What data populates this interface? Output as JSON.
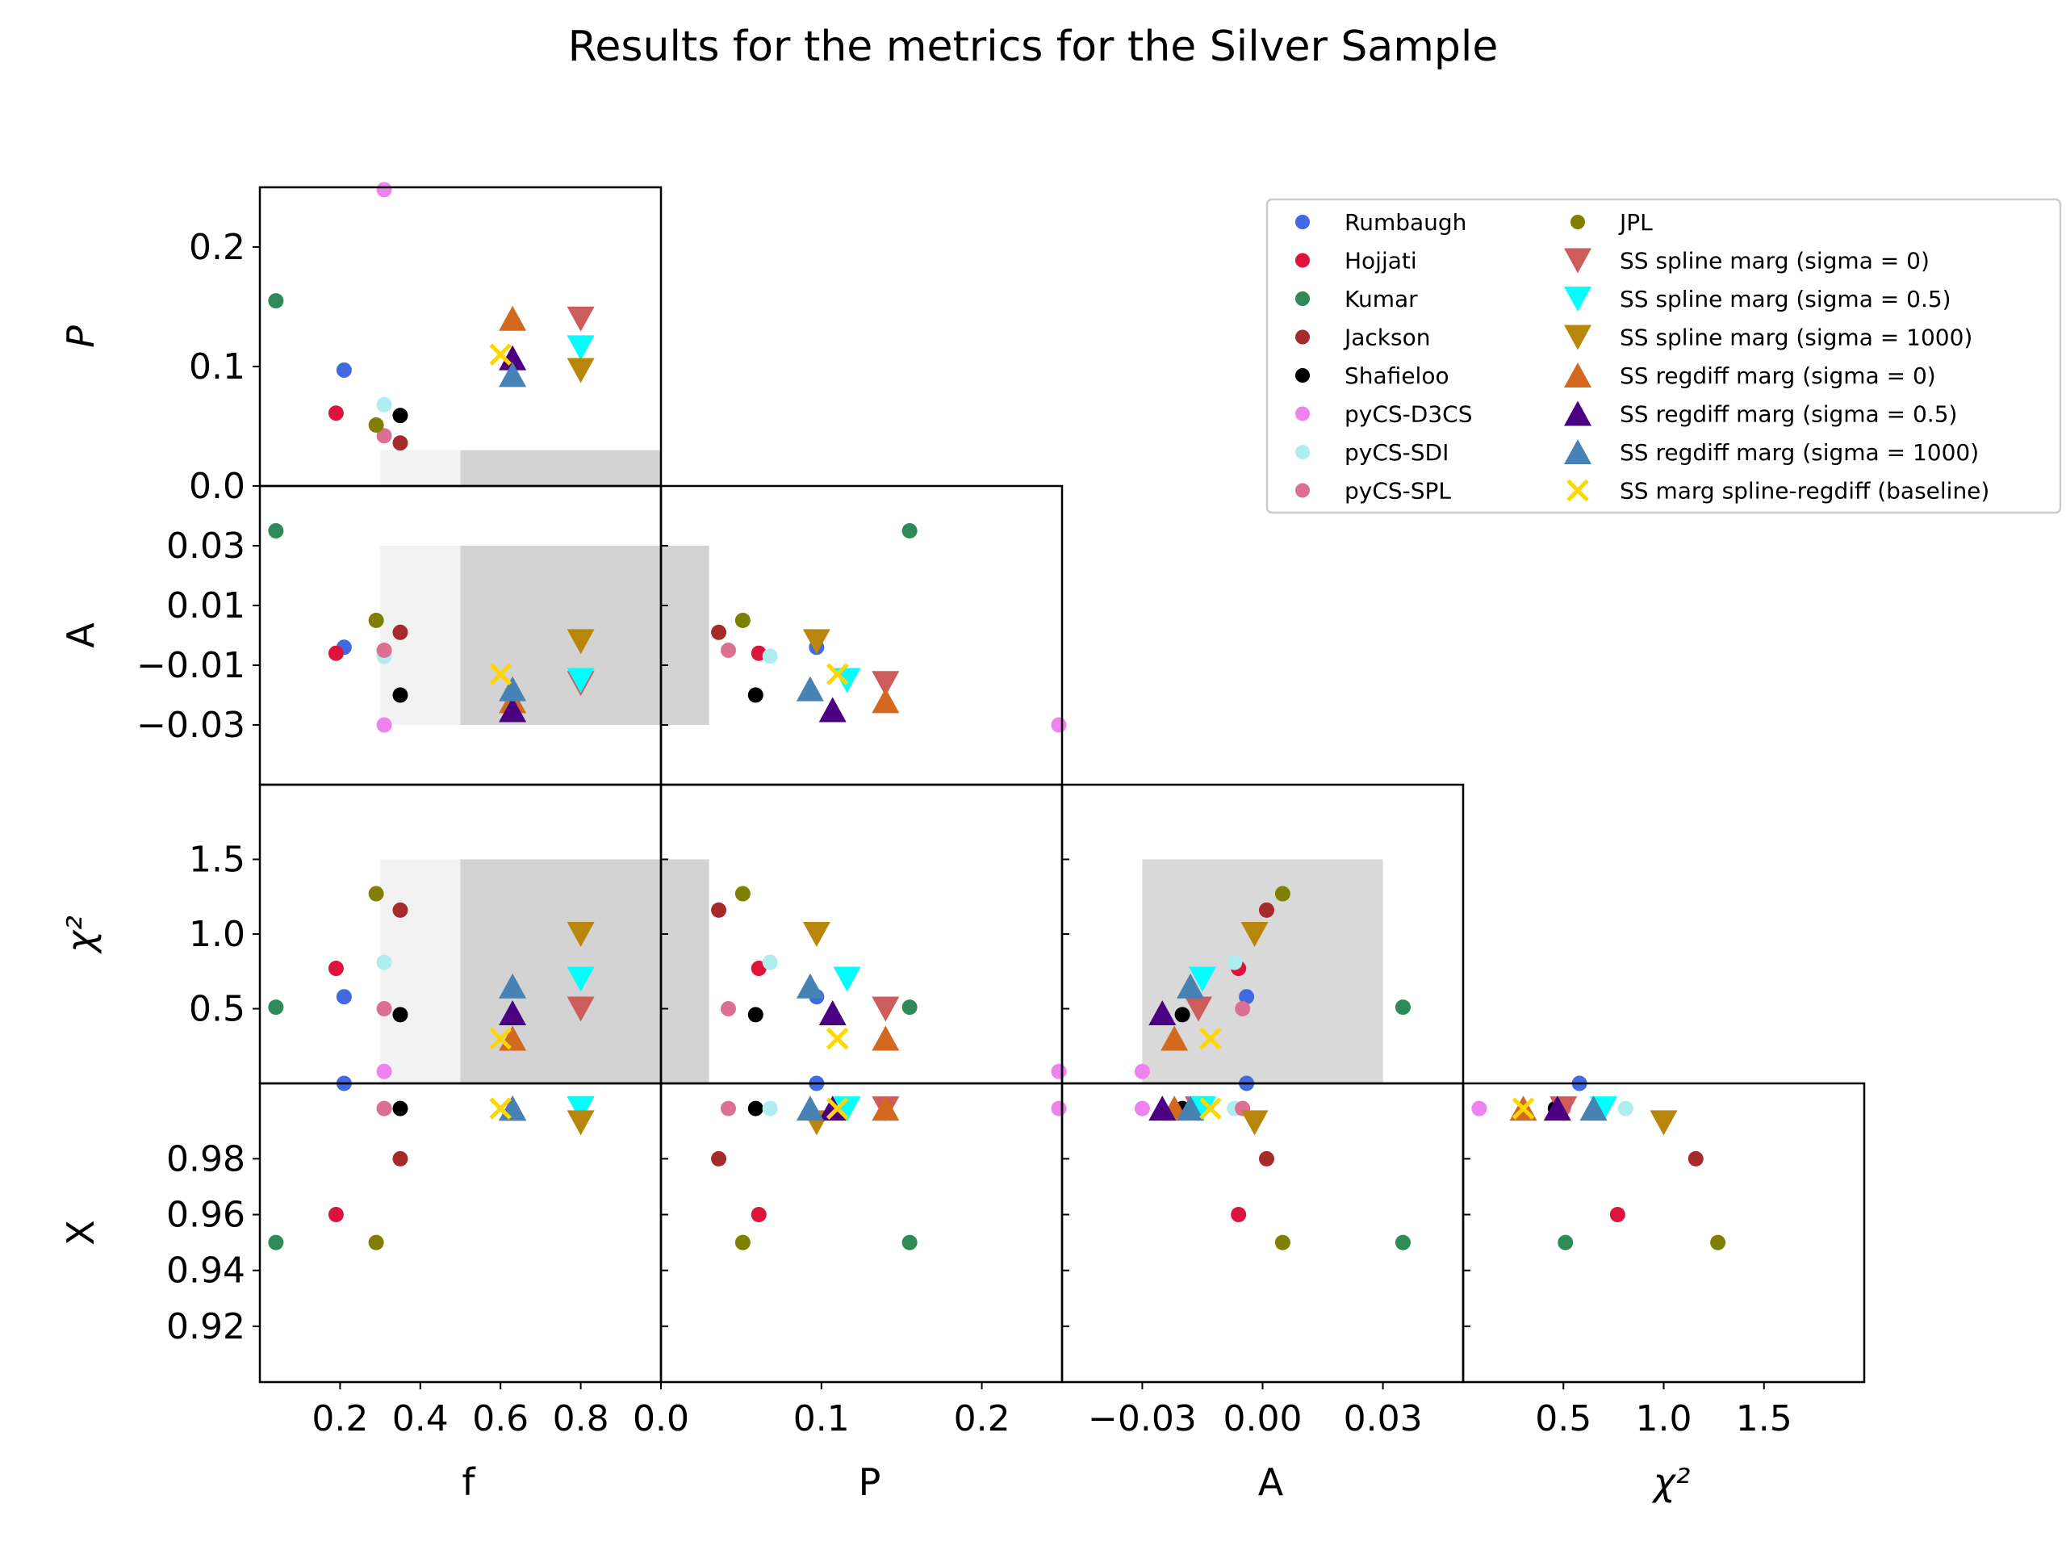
{
  "title": "Results for the metrics for the Silver Sample",
  "colors": {
    "good_region_light": "#f2f2f2",
    "good_region_dark": "#d3d3d3",
    "chi2_A_region": "#d9d9d9"
  },
  "chart_data": {
    "type": "scatter",
    "layout": "corner plot (lower triangle)",
    "variables": [
      "f",
      "P",
      "A",
      "chi2"
    ],
    "axis_labels": {
      "f": "f",
      "P": "P",
      "A": "A",
      "chi2": "χ²",
      "X": "X"
    },
    "ticks": {
      "f": [
        "0.2",
        "0.4",
        "0.6",
        "0.8",
        "0.0"
      ],
      "P": [
        "0.0",
        "0.1",
        "0.2"
      ],
      "A": [
        "−0.03",
        "0.00",
        "0.03"
      ],
      "chi2": [
        "0.5",
        "1.0",
        "1.5"
      ],
      "P_y": [
        "0.2",
        "0.1",
        "0.0"
      ],
      "A_y": [
        "0.03",
        "0.01",
        "−0.01",
        "−0.03"
      ],
      "chi2_y": [
        "1.5",
        "1.0",
        "0.5"
      ],
      "X_y": [
        "0.98",
        "0.96",
        "0.94",
        "0.92"
      ]
    },
    "ranges": {
      "f": [
        0.0,
        1.0
      ],
      "P": [
        0.0,
        0.25
      ],
      "A": [
        -0.05,
        0.05
      ],
      "chi2": [
        0.0,
        2.0
      ],
      "X": [
        0.9,
        1.007
      ]
    },
    "shaded_regions": {
      "f": {
        "light": [
          0.3,
          1.0
        ],
        "dark": [
          0.5,
          1.0
        ]
      },
      "P": [
        0.0,
        0.03
      ],
      "A": [
        -0.03,
        0.03
      ],
      "chi2": [
        0.0,
        1.5
      ]
    },
    "legend_position": "top-right",
    "series": [
      {
        "name": "Rumbaugh",
        "color": "#4169e1",
        "marker": "circle",
        "f": 0.21,
        "P": 0.097,
        "A": -0.004,
        "chi2": 0.58,
        "X": 1.02
      },
      {
        "name": "Hojjati",
        "color": "#dc143c",
        "marker": "circle",
        "f": 0.19,
        "P": 0.061,
        "A": -0.006,
        "chi2": 0.77,
        "X": 0.96
      },
      {
        "name": "Kumar",
        "color": "#2e8b57",
        "marker": "circle",
        "f": 0.04,
        "P": 0.155,
        "A": 0.035,
        "chi2": 0.51,
        "X": 0.95
      },
      {
        "name": "Jackson",
        "color": "#a52a2a",
        "marker": "circle",
        "f": 0.35,
        "P": 0.036,
        "A": 0.001,
        "chi2": 1.16,
        "X": 0.98
      },
      {
        "name": "Shafieloo",
        "color": "#000000",
        "marker": "circle",
        "f": 0.35,
        "P": 0.059,
        "A": -0.02,
        "chi2": 0.46,
        "X": 0.998
      },
      {
        "name": "pyCS-D3CS",
        "color": "#ee82ee",
        "marker": "circle",
        "f": 0.31,
        "P": 0.248,
        "A": -0.03,
        "chi2": 0.08,
        "X": 0.998
      },
      {
        "name": "pyCS-SDI",
        "color": "#afeeee",
        "marker": "circle",
        "f": 0.31,
        "P": 0.068,
        "A": -0.007,
        "chi2": 0.81,
        "X": 0.998
      },
      {
        "name": "pyCS-SPL",
        "color": "#db7093",
        "marker": "circle",
        "f": 0.31,
        "P": 0.042,
        "A": -0.005,
        "chi2": 0.5,
        "X": 0.998
      },
      {
        "name": "JPL",
        "color": "#808000",
        "marker": "circle",
        "f": 0.29,
        "P": 0.051,
        "A": 0.005,
        "chi2": 1.27,
        "X": 0.95
      },
      {
        "name": "SS spline marg (sigma = 0)",
        "color": "#cd5c5c",
        "marker": "triangle-down",
        "f": 0.8,
        "P": 0.14,
        "A": -0.016,
        "chi2": 0.5,
        "X": 0.998
      },
      {
        "name": "SS spline marg (sigma = 0.5)",
        "color": "#00ffff",
        "marker": "triangle-down",
        "f": 0.8,
        "P": 0.116,
        "A": -0.015,
        "chi2": 0.7,
        "X": 0.998
      },
      {
        "name": "SS spline marg (sigma = 1000)",
        "color": "#b8860b",
        "marker": "triangle-down",
        "f": 0.8,
        "P": 0.097,
        "A": -0.002,
        "chi2": 1.0,
        "X": 0.993
      },
      {
        "name": "SS regdiff marg (sigma = 0)",
        "color": "#d2691e",
        "marker": "triangle-up",
        "f": 0.63,
        "P": 0.14,
        "A": -0.022,
        "chi2": 0.3,
        "X": 0.998
      },
      {
        "name": "SS regdiff marg (sigma = 0.5)",
        "color": "#4b0082",
        "marker": "triangle-up",
        "f": 0.63,
        "P": 0.107,
        "A": -0.025,
        "chi2": 0.47,
        "X": 0.998
      },
      {
        "name": "SS regdiff marg (sigma = 1000)",
        "color": "#4682b4",
        "marker": "triangle-up",
        "f": 0.63,
        "P": 0.093,
        "A": -0.018,
        "chi2": 0.65,
        "X": 0.998
      },
      {
        "name": "SS marg spline-regdiff (baseline)",
        "color": "#ffd700",
        "marker": "x",
        "f": 0.6,
        "P": 0.11,
        "A": -0.013,
        "chi2": 0.3,
        "X": 0.998
      }
    ]
  }
}
